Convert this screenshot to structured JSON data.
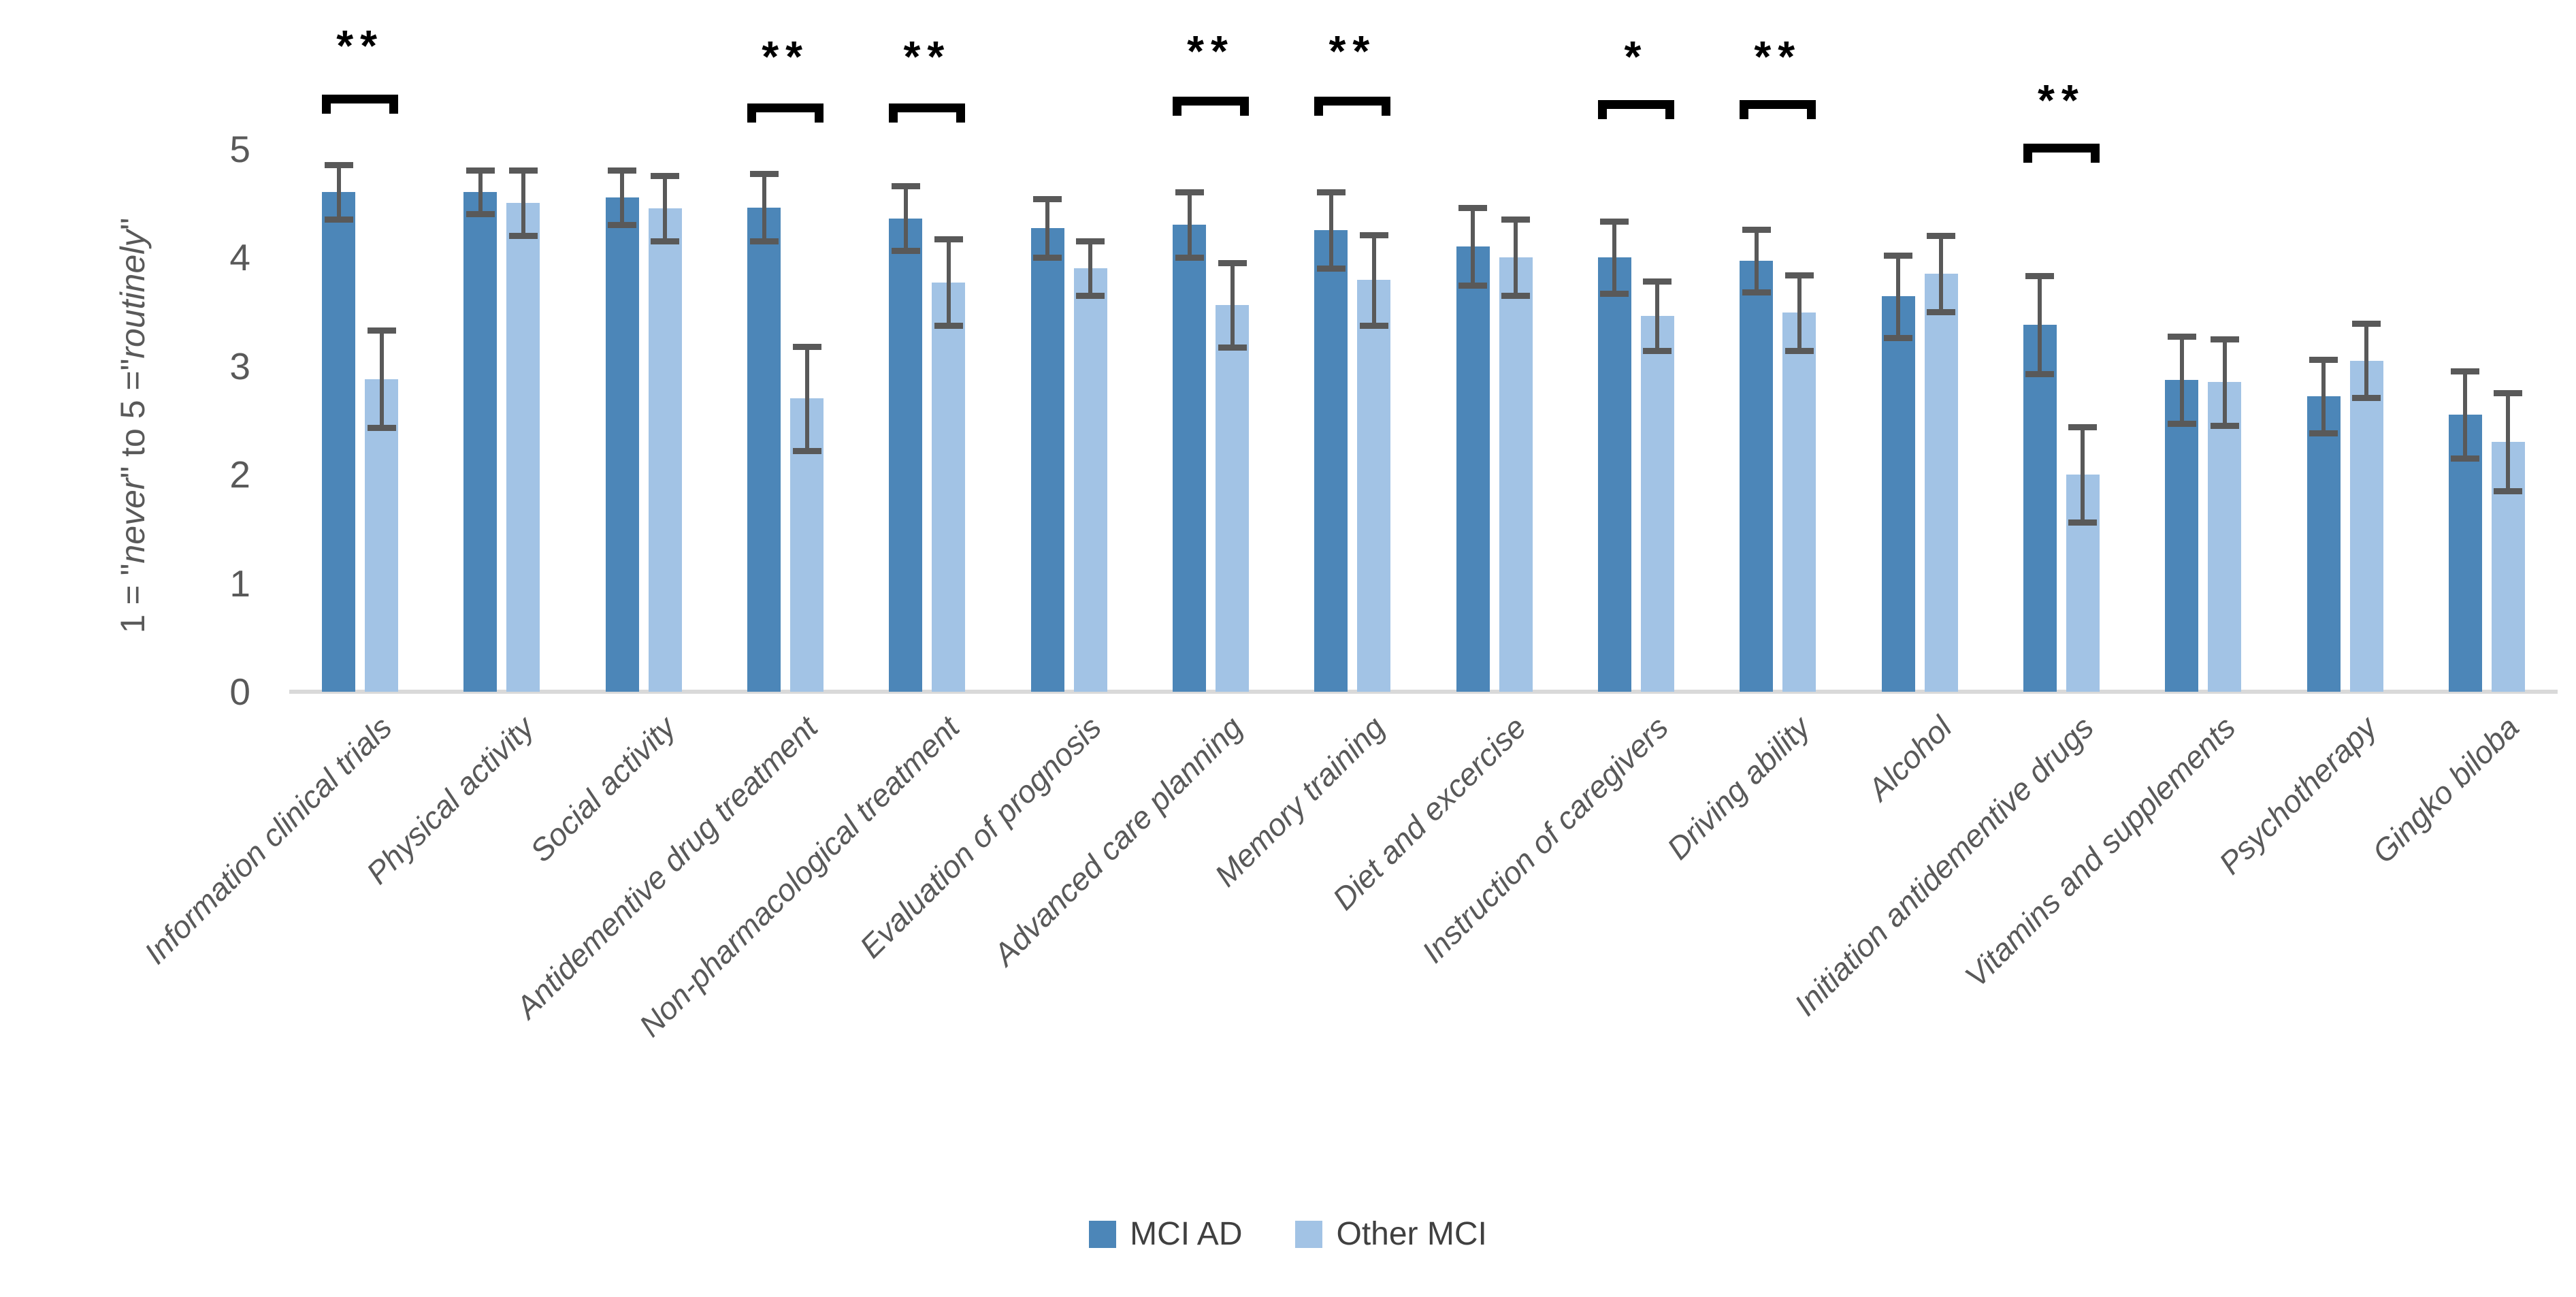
{
  "chart_data": {
    "type": "bar",
    "title": "",
    "ylabel": "1 = \"never\" to 5 =\"routinely\"",
    "ylabel_parts": [
      {
        "text": "1 = \"",
        "italic": false
      },
      {
        "text": "never",
        "italic": true
      },
      {
        "text": "\" to 5 =\"",
        "italic": false
      },
      {
        "text": "routinely",
        "italic": true
      },
      {
        "text": "\"",
        "italic": false
      }
    ],
    "ylim": [
      0,
      5
    ],
    "yticks": [
      0,
      1,
      2,
      3,
      4,
      5
    ],
    "grid": false,
    "legend_position": "bottom-center",
    "categories": [
      "Information clinical trials",
      "Physical activity",
      "Social activity",
      "Antidementive drug treatment",
      "Non-pharmacological treatment",
      "Evaluation of prognosis",
      "Advanced care planning",
      "Memory training",
      "Diet and excercise",
      "Instruction of caregivers",
      "Driving ability",
      "Alcohol",
      "Initiation antidementive drugs",
      "Vitamins and supplements",
      "Psychotherapy",
      "Gingko biloba"
    ],
    "series": [
      {
        "name": "MCI AD",
        "color": "#4c86b8",
        "values": [
          4.6,
          4.6,
          4.55,
          4.46,
          4.36,
          4.27,
          4.3,
          4.25,
          4.1,
          4.0,
          3.97,
          3.64,
          3.38,
          2.87,
          2.72,
          2.55
        ],
        "errors": [
          0.25,
          0.2,
          0.25,
          0.31,
          0.3,
          0.27,
          0.3,
          0.35,
          0.36,
          0.33,
          0.29,
          0.38,
          0.45,
          0.4,
          0.34,
          0.4
        ]
      },
      {
        "name": "Other MCI",
        "color": "#a2c3e5",
        "values": [
          2.88,
          4.5,
          4.45,
          2.7,
          3.77,
          3.9,
          3.56,
          3.79,
          4.0,
          3.46,
          3.49,
          3.85,
          2.0,
          2.85,
          3.05,
          2.3
        ],
        "errors": [
          0.45,
          0.3,
          0.3,
          0.48,
          0.4,
          0.25,
          0.39,
          0.42,
          0.35,
          0.32,
          0.35,
          0.35,
          0.44,
          0.4,
          0.34,
          0.45
        ]
      }
    ],
    "significance": [
      {
        "category_index": 0,
        "label": "**",
        "bracket_value": 5.5,
        "star_value": 5.95
      },
      {
        "category_index": 3,
        "label": "**",
        "bracket_value": 5.42,
        "star_value": 5.85
      },
      {
        "category_index": 4,
        "label": "**",
        "bracket_value": 5.42,
        "star_value": 5.85
      },
      {
        "category_index": 6,
        "label": "**",
        "bracket_value": 5.48,
        "star_value": 5.9
      },
      {
        "category_index": 7,
        "label": "**",
        "bracket_value": 5.48,
        "star_value": 5.9
      },
      {
        "category_index": 9,
        "label": "*",
        "bracket_value": 5.45,
        "star_value": 5.85
      },
      {
        "category_index": 10,
        "label": "**",
        "bracket_value": 5.45,
        "star_value": 5.85
      },
      {
        "category_index": 12,
        "label": "**",
        "bracket_value": 5.05,
        "star_value": 5.45
      }
    ],
    "colors": {
      "error_bar": "#595959",
      "axis_line": "#d9d9d9",
      "tick_text": "#595959",
      "category_text": "#595959",
      "legend_text": "#404040",
      "significance": "#000000"
    }
  }
}
